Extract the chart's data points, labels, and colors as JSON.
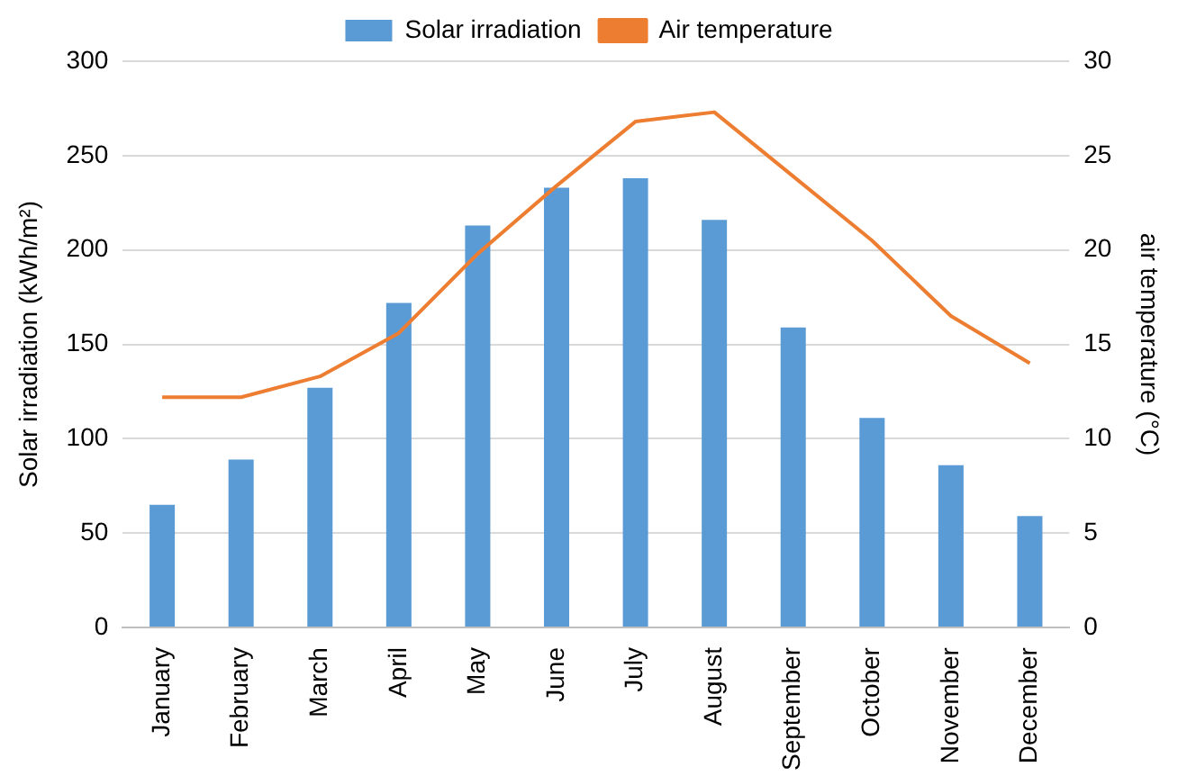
{
  "chart_data": {
    "type": "bar",
    "ylabel": "Solar irradiation (kWh/m²)",
    "y2label": "air temperature (°C)",
    "categories": [
      "January",
      "February",
      "March",
      "April",
      "May",
      "June",
      "July",
      "August",
      "September",
      "October",
      "November",
      "December"
    ],
    "series": [
      {
        "name": "Solar irradiation",
        "color": "#5b9bd5",
        "values": [
          65,
          89,
          127,
          172,
          213,
          233,
          238,
          216,
          159,
          111,
          86,
          59
        ]
      },
      {
        "name": "Air temperature",
        "type": "line",
        "axis": "y2",
        "color": "#ed7d31",
        "marker": "none",
        "values": [
          12.2,
          12.2,
          13.3,
          15.6,
          19.8,
          23.4,
          26.8,
          27.3,
          23.9,
          20.5,
          16.5,
          14.0
        ]
      }
    ],
    "ylim": [
      0,
      300
    ],
    "yticks": [
      0,
      50,
      100,
      150,
      200,
      250,
      300
    ],
    "y2lim": [
      0,
      30
    ],
    "y2ticks": [
      0,
      5,
      10,
      15,
      20,
      25,
      30
    ],
    "grid": "y",
    "legend": "top"
  }
}
